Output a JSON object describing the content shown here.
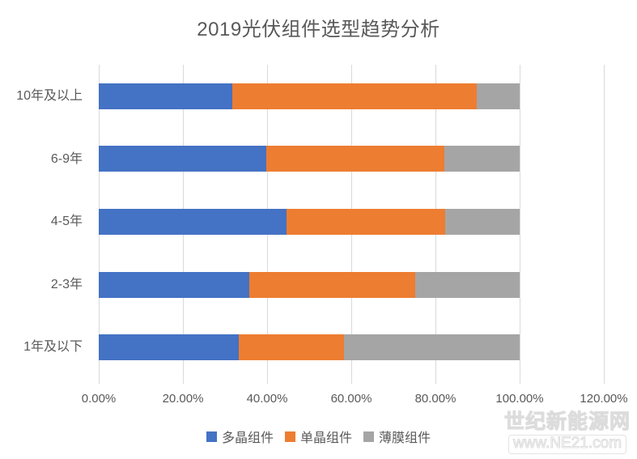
{
  "chart_data": {
    "type": "bar",
    "orientation": "horizontal",
    "stacked": true,
    "title": "2019光伏组件选型趋势分析",
    "categories": [
      "10年及以上",
      "6-9年",
      "4-5年",
      "2-3年",
      "1年及以下"
    ],
    "series": [
      {
        "name": "多晶组件",
        "color": "#4472c4",
        "values": [
          31.7,
          39.8,
          44.7,
          35.7,
          33.3
        ]
      },
      {
        "name": "单晶组件",
        "color": "#ed7d31",
        "values": [
          58.2,
          42.4,
          37.6,
          39.4,
          24.9
        ]
      },
      {
        "name": "薄膜组件",
        "color": "#a5a5a5",
        "values": [
          10.1,
          17.8,
          17.7,
          24.9,
          41.8
        ]
      }
    ],
    "x_ticks": [
      "0.00%",
      "20.00%",
      "40.00%",
      "60.00%",
      "80.00%",
      "100.00%",
      "120.00%"
    ],
    "xlim": [
      0,
      120
    ],
    "grid": true,
    "legend_position": "bottom",
    "grid_color": "#d9d9d9",
    "text_color": "#595959"
  },
  "watermark": {
    "line1": "世纪新能源网",
    "line2": "www.NE21.com"
  }
}
